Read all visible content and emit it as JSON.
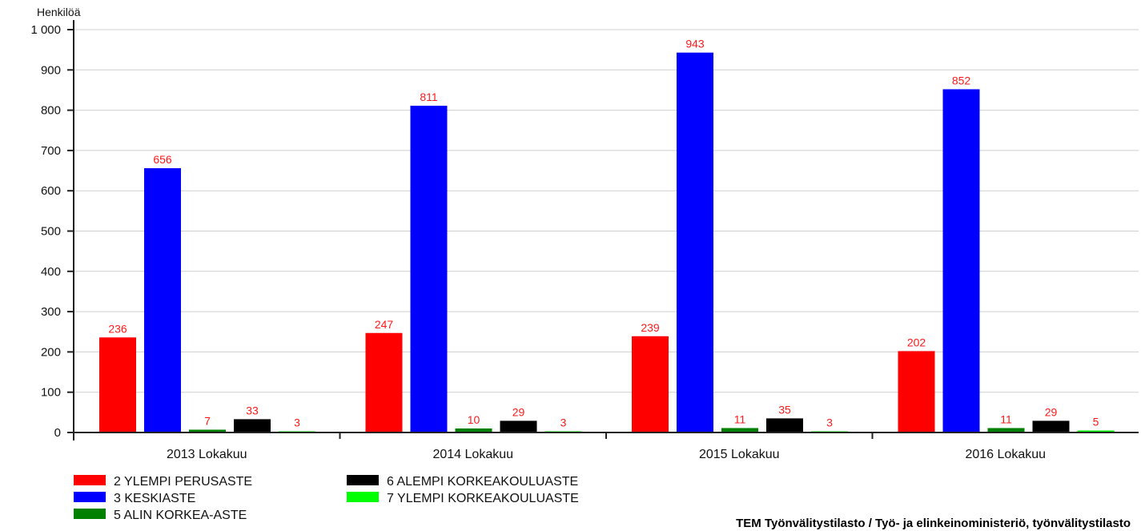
{
  "chart_data": {
    "type": "bar",
    "ylabel": "Henkilöä",
    "ylim": [
      0,
      1000
    ],
    "yticks": [
      0,
      100,
      200,
      300,
      400,
      500,
      600,
      700,
      800,
      900,
      1000
    ],
    "ytick_labels": [
      "0",
      "100",
      "200",
      "300",
      "400",
      "500",
      "600",
      "700",
      "800",
      "900",
      "1 000"
    ],
    "categories": [
      "2013 Lokakuu",
      "2014 Lokakuu",
      "2015 Lokakuu",
      "2016 Lokakuu"
    ],
    "grid": true,
    "legend_position": "bottom-left",
    "series": [
      {
        "name": "2 YLEMPI PERUSASTE",
        "color": "#ff0000",
        "values": [
          236,
          247,
          239,
          202
        ]
      },
      {
        "name": "3 KESKIASTE",
        "color": "#0000ff",
        "values": [
          656,
          811,
          943,
          852
        ]
      },
      {
        "name": "5 ALIN KORKEA-ASTE",
        "color": "#008000",
        "values": [
          7,
          10,
          11,
          11
        ]
      },
      {
        "name": "6 ALEMPI KORKEAKOULUASTE",
        "color": "#000000",
        "values": [
          33,
          29,
          35,
          29
        ]
      },
      {
        "name": "7 YLEMPI KORKEAKOULUASTE",
        "color": "#00ff00",
        "values": [
          3,
          3,
          3,
          5
        ]
      }
    ],
    "source": "TEM Työnvälitystilasto / Työ- ja elinkeinoministeriö, työnvälitystilasto"
  }
}
